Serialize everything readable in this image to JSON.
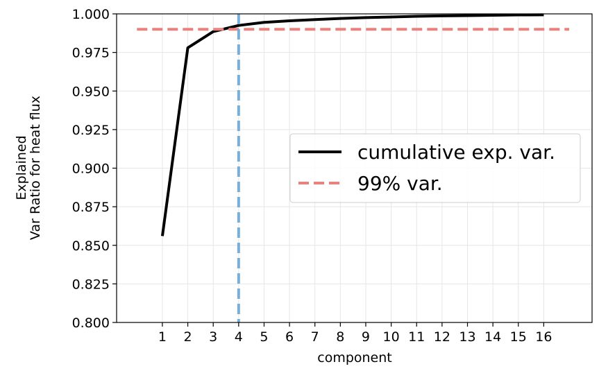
{
  "chart_data": {
    "type": "line",
    "title": "",
    "xlabel": "component",
    "ylabel_lines": [
      "Explained",
      "Var Ratio for heat flux"
    ],
    "xlim": [
      -0.8,
      17.9
    ],
    "ylim": [
      0.8,
      1.0
    ],
    "x_ticks": [
      1,
      2,
      3,
      4,
      5,
      6,
      7,
      8,
      9,
      10,
      11,
      12,
      13,
      14,
      15,
      16
    ],
    "y_ticks": [
      0.8,
      0.825,
      0.85,
      0.875,
      0.9,
      0.925,
      0.95,
      0.975,
      1.0
    ],
    "y_tick_labels": [
      "0.800",
      "0.825",
      "0.850",
      "0.875",
      "0.900",
      "0.925",
      "0.950",
      "0.975",
      "1.000"
    ],
    "grid": true,
    "legend_position": "center-right",
    "series": [
      {
        "name": "cumulative exp. var.",
        "style": "solid",
        "color": "#000000",
        "x": [
          1,
          2,
          3,
          4,
          5,
          6,
          7,
          8,
          9,
          10,
          11,
          12,
          13,
          14,
          15,
          16
        ],
        "y": [
          0.856,
          0.978,
          0.9885,
          0.9925,
          0.9945,
          0.9955,
          0.9963,
          0.997,
          0.9976,
          0.998,
          0.9984,
          0.9987,
          0.9989,
          0.9991,
          0.9993,
          0.9994
        ]
      },
      {
        "name": "99% var.",
        "style": "dashed",
        "color": "#e8827e",
        "x": [
          0,
          17
        ],
        "y": [
          0.99,
          0.99
        ]
      }
    ],
    "vertical_line": {
      "x": 4,
      "color": "#7baed6",
      "style": "dashed"
    }
  }
}
